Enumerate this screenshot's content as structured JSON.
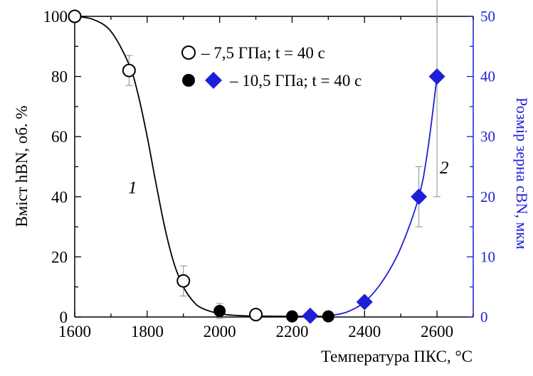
{
  "chart_data": {
    "type": "scatter",
    "xlim": [
      1600,
      2700
    ],
    "x_ticks": [
      1600,
      1800,
      2000,
      2200,
      2400,
      2600
    ],
    "y_left_lim": [
      0,
      100
    ],
    "y_left_ticks": [
      0,
      20,
      40,
      60,
      80,
      100
    ],
    "y_right_lim": [
      0,
      50
    ],
    "y_right_ticks": [
      0,
      10,
      20,
      30,
      40,
      50
    ],
    "x_axis_label": "Температура ПКС, °С",
    "y_left_label": "Вміст hBN, об. %",
    "y_right_label": "Розмір зерна cBN, мкм",
    "grid": false,
    "colors": {
      "left_axis": "#000000",
      "right_axis": "#1f1fd6",
      "curve_2": "#1f1fd6",
      "diamond": "#1f1fd6",
      "error_bar": "#8c8c8c"
    },
    "series": [
      {
        "axis": "left",
        "marker": "open-circle",
        "points": [
          {
            "x": 1600,
            "y": 100
          },
          {
            "x": 1750,
            "y": 82,
            "err": 5
          },
          {
            "x": 1900,
            "y": 12,
            "err": 5
          },
          {
            "x": 2100,
            "y": 0.8
          }
        ]
      },
      {
        "axis": "left",
        "marker": "filled-circle",
        "points": [
          {
            "x": 2000,
            "y": 2,
            "err": 2.5
          },
          {
            "x": 2200,
            "y": 0.2
          },
          {
            "x": 2300,
            "y": 0.2
          }
        ]
      },
      {
        "axis": "right",
        "marker": "filled-diamond",
        "points": [
          {
            "x": 2250,
            "y": 0.2
          },
          {
            "x": 2400,
            "y": 2.5
          },
          {
            "x": 2550,
            "y": 20,
            "err": 5
          },
          {
            "x": 2600,
            "y": 40,
            "err": 20
          }
        ]
      }
    ],
    "curves": [
      {
        "label": "1",
        "axis": "left",
        "color": "#000000",
        "points": [
          [
            1600,
            100
          ],
          [
            1650,
            99
          ],
          [
            1700,
            95
          ],
          [
            1750,
            84
          ],
          [
            1775,
            74
          ],
          [
            1800,
            60
          ],
          [
            1825,
            44
          ],
          [
            1850,
            29
          ],
          [
            1875,
            17.5
          ],
          [
            1900,
            10
          ],
          [
            1925,
            5.5
          ],
          [
            1950,
            3
          ],
          [
            2000,
            1.1
          ],
          [
            2050,
            0.5
          ],
          [
            2100,
            0.3
          ],
          [
            2200,
            0.2
          ],
          [
            2300,
            0.2
          ]
        ]
      },
      {
        "label": "2",
        "axis": "right",
        "color": "#1f1fd6",
        "points": [
          [
            2300,
            0.2
          ],
          [
            2350,
            0.8
          ],
          [
            2400,
            2.5
          ],
          [
            2450,
            6
          ],
          [
            2500,
            11.5
          ],
          [
            2550,
            20
          ],
          [
            2575,
            28
          ],
          [
            2600,
            40
          ]
        ]
      }
    ],
    "legend": [
      {
        "marker": "open-circle",
        "text": "– 7,5 ГПа; t = 40 с"
      },
      {
        "marker": "filled-circle-and-diamond",
        "text": "– 10,5 ГПа; t = 40 с"
      }
    ],
    "legend_placement": "top-center"
  }
}
